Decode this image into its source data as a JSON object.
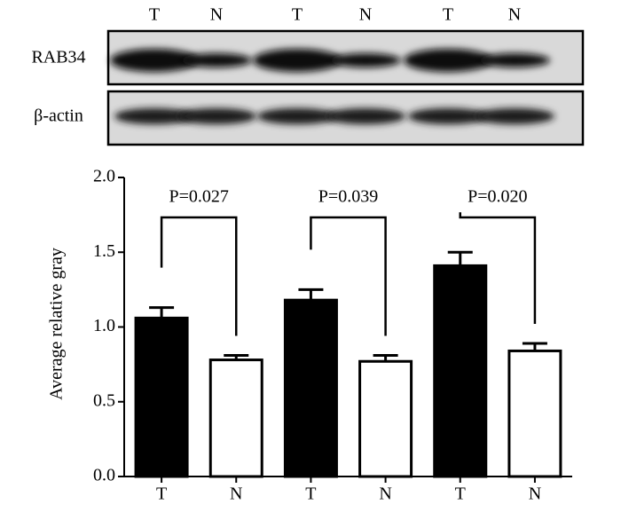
{
  "blot": {
    "lanes": [
      "T",
      "N",
      "T",
      "N",
      "T",
      "N"
    ],
    "rows": [
      "RAB34",
      "β-actin"
    ]
  },
  "chart_data": {
    "type": "bar",
    "ylabel": "Average relative gray",
    "categories": [
      "T",
      "N",
      "T",
      "N",
      "T",
      "N"
    ],
    "values": [
      1.06,
      0.78,
      1.18,
      0.77,
      1.41,
      0.84
    ],
    "errors": [
      0.07,
      0.03,
      0.07,
      0.04,
      0.09,
      0.05
    ],
    "colors": [
      "#000000",
      "#ffffff",
      "#000000",
      "#ffffff",
      "#000000",
      "#ffffff"
    ],
    "ylim": [
      0,
      2
    ],
    "yticks": [
      {
        "value": 0,
        "label": "0.0"
      },
      {
        "value": 0.5,
        "label": "0.5"
      },
      {
        "value": 1,
        "label": "1.0"
      },
      {
        "value": 1.5,
        "label": "1.5"
      },
      {
        "value": 2,
        "label": "2.0"
      }
    ],
    "annotations": [
      {
        "text": "P=0.027",
        "pair": [
          0,
          1
        ]
      },
      {
        "text": "P=0.039",
        "pair": [
          2,
          3
        ]
      },
      {
        "text": "P=0.020",
        "pair": [
          4,
          5
        ]
      }
    ]
  }
}
